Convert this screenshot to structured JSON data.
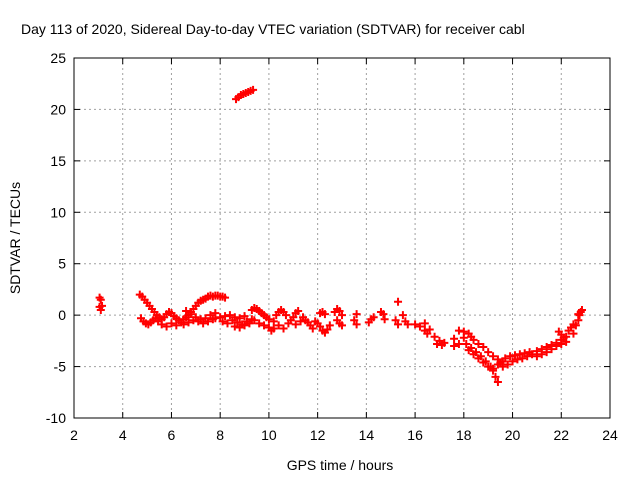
{
  "chart_data": {
    "type": "scatter",
    "title": "Day 113 of 2020, Sidereal Day-to-day VTEC variation (SDTVAR) for receiver cabl",
    "xlabel": "GPS time / hours",
    "ylabel": "SDTVAR / TECUs",
    "xlim": [
      2,
      24
    ],
    "ylim": [
      -10,
      25
    ],
    "grid": true,
    "marker": "+",
    "colors": {
      "series": "#ff0000",
      "grid": "#a0a0a0",
      "axis": "#000000"
    },
    "x_ticks": [
      2,
      4,
      6,
      8,
      10,
      12,
      14,
      16,
      18,
      20,
      22,
      24
    ],
    "x_tick_labels": [
      "2",
      "4",
      "6",
      "8",
      "10",
      "12",
      "14",
      "16",
      "18",
      "20",
      "22",
      "24"
    ],
    "y_ticks": [
      -10,
      -5,
      0,
      5,
      10,
      15,
      20,
      25
    ],
    "y_tick_labels": [
      "-10",
      "-5",
      "0",
      "5",
      "10",
      "15",
      "20",
      "25"
    ],
    "series": [
      {
        "name": "SDTVAR",
        "points": [
          [
            3.05,
            1.7
          ],
          [
            3.1,
            1.5
          ],
          [
            3.05,
            0.8
          ],
          [
            3.1,
            0.5
          ],
          [
            3.15,
            0.9
          ],
          [
            8.65,
            21.0
          ],
          [
            8.75,
            21.2
          ],
          [
            8.85,
            21.4
          ],
          [
            8.95,
            21.5
          ],
          [
            9.05,
            21.6
          ],
          [
            9.15,
            21.7
          ],
          [
            9.25,
            21.8
          ],
          [
            9.35,
            21.9
          ],
          [
            4.7,
            2.0
          ],
          [
            4.8,
            1.8
          ],
          [
            4.9,
            1.5
          ],
          [
            5.0,
            1.2
          ],
          [
            5.1,
            0.9
          ],
          [
            5.2,
            0.6
          ],
          [
            5.3,
            0.3
          ],
          [
            5.4,
            0.0
          ],
          [
            5.5,
            -0.2
          ],
          [
            4.75,
            -0.3
          ],
          [
            4.85,
            -0.6
          ],
          [
            4.95,
            -0.8
          ],
          [
            5.05,
            -0.9
          ],
          [
            5.15,
            -0.7
          ],
          [
            5.25,
            -0.5
          ],
          [
            5.35,
            -0.3
          ],
          [
            5.45,
            -0.6
          ],
          [
            5.6,
            -0.4
          ],
          [
            5.7,
            -0.2
          ],
          [
            5.8,
            0.1
          ],
          [
            5.9,
            0.3
          ],
          [
            6.0,
            0.2
          ],
          [
            6.1,
            -0.1
          ],
          [
            6.2,
            -0.3
          ],
          [
            6.3,
            -0.5
          ],
          [
            5.6,
            -0.9
          ],
          [
            5.8,
            -1.1
          ],
          [
            6.0,
            -0.8
          ],
          [
            6.2,
            -1.0
          ],
          [
            6.4,
            -0.7
          ],
          [
            6.5,
            -0.4
          ],
          [
            6.6,
            -0.2
          ],
          [
            6.7,
            0.0
          ],
          [
            6.8,
            0.3
          ],
          [
            6.9,
            0.6
          ],
          [
            7.0,
            0.9
          ],
          [
            7.1,
            1.2
          ],
          [
            7.2,
            1.4
          ],
          [
            7.3,
            1.5
          ],
          [
            7.4,
            1.6
          ],
          [
            7.5,
            1.8
          ],
          [
            7.6,
            1.9
          ],
          [
            7.7,
            1.8
          ],
          [
            7.8,
            1.9
          ],
          [
            7.9,
            1.9
          ],
          [
            8.0,
            1.8
          ],
          [
            8.1,
            1.8
          ],
          [
            8.2,
            1.7
          ],
          [
            6.6,
            0.4
          ],
          [
            6.8,
            0.1
          ],
          [
            7.0,
            -0.2
          ],
          [
            7.2,
            -0.4
          ],
          [
            7.4,
            -0.3
          ],
          [
            7.6,
            0.0
          ],
          [
            7.8,
            0.2
          ],
          [
            6.5,
            -0.9
          ],
          [
            6.7,
            -0.7
          ],
          [
            6.9,
            -0.5
          ],
          [
            7.1,
            -0.6
          ],
          [
            7.3,
            -0.8
          ],
          [
            7.5,
            -0.6
          ],
          [
            7.7,
            -0.4
          ],
          [
            7.8,
            -0.3
          ],
          [
            8.0,
            -0.2
          ],
          [
            8.2,
            -0.1
          ],
          [
            8.4,
            0.0
          ],
          [
            8.6,
            -0.2
          ],
          [
            8.8,
            -0.3
          ],
          [
            9.0,
            -0.1
          ],
          [
            8.1,
            -0.6
          ],
          [
            8.3,
            -0.8
          ],
          [
            8.5,
            -0.5
          ],
          [
            8.7,
            -0.7
          ],
          [
            8.9,
            -0.9
          ],
          [
            9.1,
            -0.6
          ],
          [
            9.3,
            -0.4
          ],
          [
            8.6,
            -1.1
          ],
          [
            8.8,
            -1.2
          ],
          [
            9.0,
            -1.0
          ],
          [
            9.2,
            -0.8
          ],
          [
            9.3,
            0.5
          ],
          [
            9.4,
            0.7
          ],
          [
            9.5,
            0.6
          ],
          [
            9.6,
            0.4
          ],
          [
            9.7,
            0.2
          ],
          [
            9.8,
            0.0
          ],
          [
            9.9,
            -0.2
          ],
          [
            9.4,
            -0.5
          ],
          [
            9.6,
            -0.8
          ],
          [
            9.8,
            -1.0
          ],
          [
            10.0,
            -1.2
          ],
          [
            10.1,
            -1.5
          ],
          [
            10.2,
            -1.3
          ],
          [
            10.0,
            -0.4
          ],
          [
            10.2,
            -0.6
          ],
          [
            10.3,
            0.0
          ],
          [
            10.4,
            0.3
          ],
          [
            10.5,
            0.5
          ],
          [
            10.6,
            0.3
          ],
          [
            10.7,
            0.0
          ],
          [
            10.4,
            -1.0
          ],
          [
            10.6,
            -1.3
          ],
          [
            10.8,
            -0.8
          ],
          [
            10.9,
            -0.5
          ],
          [
            11.0,
            -0.2
          ],
          [
            11.1,
            0.2
          ],
          [
            11.2,
            0.4
          ],
          [
            11.1,
            -0.9
          ],
          [
            11.3,
            -0.6
          ],
          [
            11.4,
            -0.2
          ],
          [
            11.5,
            -0.5
          ],
          [
            11.6,
            -0.7
          ],
          [
            11.7,
            -1.0
          ],
          [
            11.8,
            -1.3
          ],
          [
            11.9,
            -0.6
          ],
          [
            12.0,
            -0.8
          ],
          [
            12.1,
            -1.1
          ],
          [
            12.2,
            -1.5
          ],
          [
            12.3,
            -1.7
          ],
          [
            12.4,
            -1.4
          ],
          [
            12.5,
            -1.0
          ],
          [
            12.1,
            0.2
          ],
          [
            12.2,
            0.3
          ],
          [
            12.3,
            0.1
          ],
          [
            12.7,
            0.3
          ],
          [
            12.8,
            0.6
          ],
          [
            12.9,
            0.4
          ],
          [
            13.0,
            0.0
          ],
          [
            12.8,
            -0.5
          ],
          [
            12.9,
            -0.8
          ],
          [
            13.0,
            -1.0
          ],
          [
            13.5,
            -0.5
          ],
          [
            13.6,
            0.1
          ],
          [
            13.6,
            -0.9
          ],
          [
            14.1,
            -0.7
          ],
          [
            14.2,
            -0.4
          ],
          [
            14.3,
            -0.2
          ],
          [
            14.6,
            0.3
          ],
          [
            14.7,
            0.1
          ],
          [
            14.75,
            -0.4
          ],
          [
            15.2,
            -0.5
          ],
          [
            15.3,
            -0.9
          ],
          [
            15.6,
            -0.6
          ],
          [
            15.7,
            -0.9
          ],
          [
            15.5,
            0.0
          ],
          [
            15.3,
            1.3
          ],
          [
            16.0,
            -0.9
          ],
          [
            16.2,
            -1.1
          ],
          [
            16.4,
            -1.5
          ],
          [
            16.5,
            -1.8
          ],
          [
            16.6,
            -1.4
          ],
          [
            16.4,
            -0.8
          ],
          [
            16.8,
            -2.1
          ],
          [
            16.9,
            -2.8
          ],
          [
            17.0,
            -2.5
          ],
          [
            17.1,
            -2.9
          ],
          [
            17.2,
            -2.7
          ],
          [
            17.6,
            -2.3
          ],
          [
            17.6,
            -3.0
          ],
          [
            17.8,
            -2.8
          ],
          [
            18.0,
            -2.2
          ],
          [
            18.2,
            -1.8
          ],
          [
            18.3,
            -2.1
          ],
          [
            17.8,
            -1.5
          ],
          [
            18.0,
            -1.6
          ],
          [
            18.1,
            -2.8
          ],
          [
            18.3,
            -3.2
          ],
          [
            18.5,
            -3.6
          ],
          [
            18.7,
            -4.0
          ],
          [
            18.9,
            -4.5
          ],
          [
            19.1,
            -5.0
          ],
          [
            19.2,
            -5.4
          ],
          [
            19.3,
            -6.0
          ],
          [
            19.4,
            -6.5
          ],
          [
            18.4,
            -2.4
          ],
          [
            18.6,
            -2.8
          ],
          [
            18.8,
            -3.1
          ],
          [
            19.0,
            -3.6
          ],
          [
            19.2,
            -4.0
          ],
          [
            19.4,
            -4.3
          ],
          [
            19.6,
            -4.5
          ],
          [
            18.2,
            -3.4
          ],
          [
            18.4,
            -3.8
          ],
          [
            18.6,
            -4.2
          ],
          [
            18.8,
            -4.6
          ],
          [
            19.0,
            -5.0
          ],
          [
            19.2,
            -5.2
          ],
          [
            19.4,
            -4.8
          ],
          [
            19.5,
            -4.6
          ],
          [
            19.7,
            -4.2
          ],
          [
            19.9,
            -4.0
          ],
          [
            20.1,
            -3.9
          ],
          [
            20.3,
            -3.8
          ],
          [
            20.5,
            -3.7
          ],
          [
            20.7,
            -3.6
          ],
          [
            19.6,
            -5.0
          ],
          [
            19.8,
            -4.8
          ],
          [
            20.0,
            -4.5
          ],
          [
            20.2,
            -4.3
          ],
          [
            20.4,
            -4.2
          ],
          [
            20.6,
            -4.0
          ],
          [
            20.8,
            -3.8
          ],
          [
            21.0,
            -3.5
          ],
          [
            21.2,
            -3.3
          ],
          [
            21.4,
            -3.1
          ],
          [
            21.6,
            -2.9
          ],
          [
            21.8,
            -2.7
          ],
          [
            22.0,
            -2.4
          ],
          [
            22.2,
            -2.1
          ],
          [
            21.0,
            -4.0
          ],
          [
            21.2,
            -3.8
          ],
          [
            21.4,
            -3.6
          ],
          [
            21.6,
            -3.3
          ],
          [
            21.8,
            -3.0
          ],
          [
            22.0,
            -2.8
          ],
          [
            22.2,
            -2.6
          ],
          [
            21.9,
            -1.6
          ],
          [
            22.0,
            -1.9
          ],
          [
            22.1,
            -2.2
          ],
          [
            22.3,
            -1.5
          ],
          [
            22.4,
            -1.2
          ],
          [
            22.5,
            -0.9
          ],
          [
            22.5,
            -1.8
          ],
          [
            22.6,
            -1.0
          ],
          [
            22.7,
            -0.5
          ],
          [
            22.75,
            0.0
          ],
          [
            22.8,
            0.3
          ],
          [
            22.85,
            0.5
          ],
          [
            22.7,
            0.1
          ]
        ]
      }
    ]
  }
}
